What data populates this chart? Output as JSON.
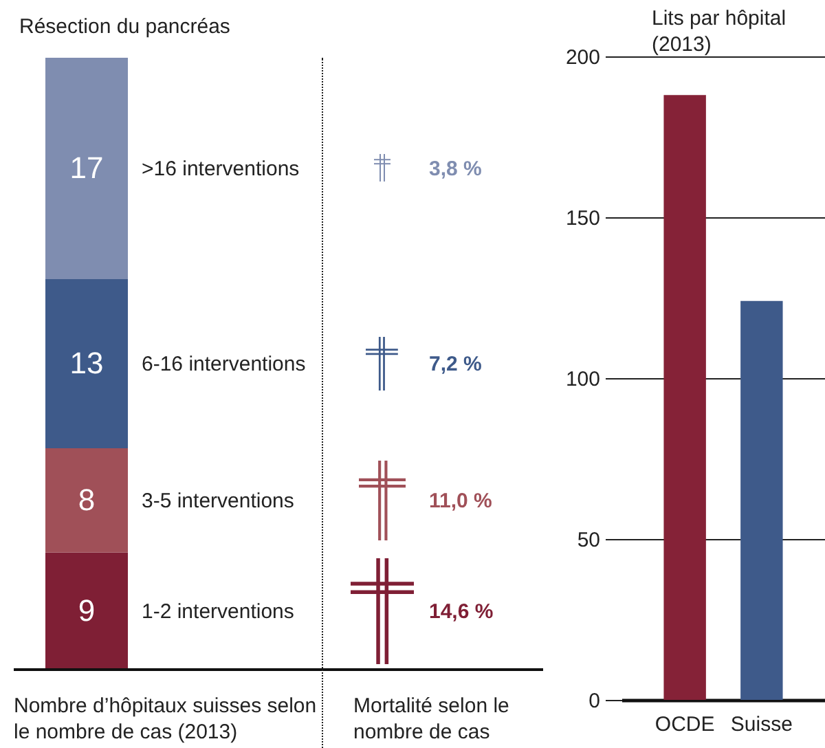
{
  "chart_data": [
    {
      "type": "bar",
      "stacked": true,
      "title": "Résection du pancréas",
      "xlabel": "Nombre d’hôpitaux suisses selon le nombre de cas (2013)",
      "categories": [
        null
      ],
      "data_labels": true,
      "series": [
        {
          "name": "1-2 interventions",
          "color": "#7f1f35",
          "values": [
            9
          ]
        },
        {
          "name": "3-5 interventions",
          "color": "#a05058",
          "values": [
            8
          ]
        },
        {
          "name": "6-16 interventions",
          "color": "#3e5a8a",
          "values": [
            13
          ]
        },
        {
          "name": ">16 interventions",
          "color": "#7f8db0",
          "values": [
            17
          ]
        }
      ],
      "annotations": [
        "14,6 %",
        "11,0 %",
        "7,2 %",
        "3,8 %",
        "Mortalité selon le nombre de cas"
      ]
    },
    {
      "type": "bar",
      "title": "Lits par hôpital (2013)",
      "categories": [
        "OCDE",
        "Suisse"
      ],
      "values": [
        188,
        124
      ],
      "colors": [
        "#852237",
        "#3e5a8a"
      ],
      "ylim": [
        0,
        200
      ],
      "yticks": [
        0,
        50,
        100,
        150,
        200
      ],
      "grid": "y"
    }
  ]
}
